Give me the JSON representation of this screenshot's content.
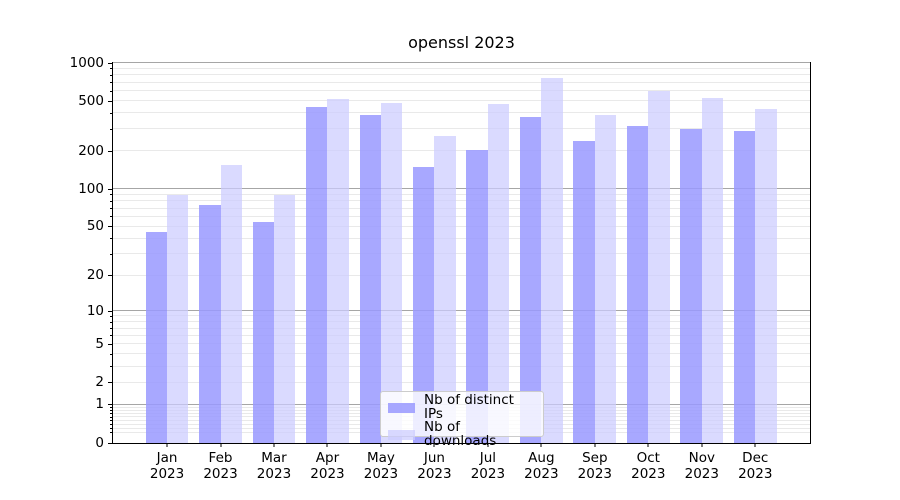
{
  "chart_data": {
    "type": "bar",
    "title": "openssl 2023",
    "categories": [
      "Jan",
      "Feb",
      "Mar",
      "Apr",
      "May",
      "Jun",
      "Jul",
      "Aug",
      "Sep",
      "Oct",
      "Nov",
      "Dec"
    ],
    "year_label": "2023",
    "series": [
      {
        "name": "Nb of distinct IPs",
        "color": "#9999ff",
        "fill": "rgba(153,153,255,0.85)",
        "values": [
          45,
          75,
          55,
          445,
          390,
          150,
          205,
          375,
          240,
          315,
          300,
          290
        ]
      },
      {
        "name": "Nb of downloads",
        "color": "#ccccff",
        "fill": "rgba(204,204,255,0.72)",
        "values": [
          90,
          155,
          90,
          515,
          485,
          265,
          470,
          755,
          385,
          595,
          530,
          430
        ]
      }
    ],
    "yscale": "log1p",
    "ylim": [
      0,
      1000
    ],
    "yticks": [
      0,
      1,
      2,
      5,
      10,
      20,
      50,
      100,
      200,
      500,
      1000
    ],
    "major_gridlines": [
      1,
      10,
      100,
      1000
    ],
    "grid": true,
    "legend_position": "lower center",
    "xlabel": "",
    "ylabel": ""
  }
}
